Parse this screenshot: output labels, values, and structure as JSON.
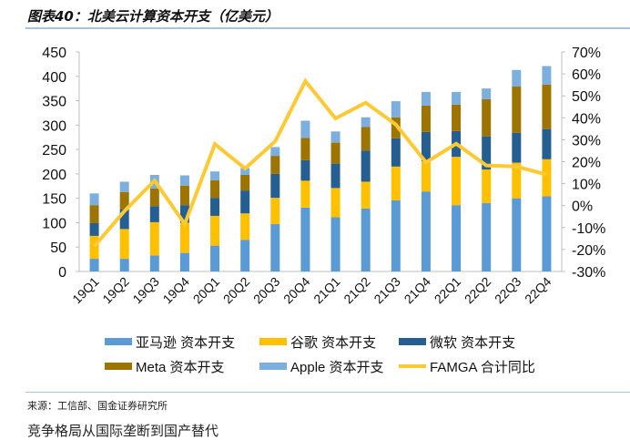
{
  "title": "图表40：北美云计算资本开支（亿美元）",
  "source": "来源：工信部、国金证券研究所",
  "cut_text": "竞争格局从国际垄断到国产替代",
  "chart_data": {
    "type": "bar",
    "stacked": true,
    "categories": [
      "19Q1",
      "19Q2",
      "19Q3",
      "19Q4",
      "20Q1",
      "20Q2",
      "20Q3",
      "20Q4",
      "21Q1",
      "21Q2",
      "21Q3",
      "21Q4",
      "22Q1",
      "22Q2",
      "22Q3",
      "22Q4"
    ],
    "ylim": [
      0,
      450
    ],
    "yticks": [
      0,
      50,
      100,
      150,
      200,
      250,
      300,
      350,
      400,
      450
    ],
    "y2lim": [
      -30,
      70
    ],
    "y2ticks": [
      "-30%",
      "-20%",
      "-10%",
      "0%",
      "10%",
      "20%",
      "30%",
      "40%",
      "50%",
      "60%",
      "70%"
    ],
    "legend_position": "bottom",
    "series": [
      {
        "name": "亚马逊 资本开支",
        "color": "#5b9bd5",
        "values": [
          26,
          26,
          33,
          38,
          53,
          65,
          97,
          131,
          111,
          129,
          146,
          164,
          136,
          140,
          150,
          154
        ]
      },
      {
        "name": "谷歌 资本开支",
        "color": "#ffc000",
        "values": [
          47,
          61,
          68,
          62,
          61,
          54,
          54,
          55,
          60,
          55,
          69,
          62,
          99,
          69,
          73,
          76
        ]
      },
      {
        "name": "微软 资本开支",
        "color": "#255e91",
        "values": [
          26,
          40,
          33,
          36,
          37,
          47,
          49,
          42,
          50,
          64,
          58,
          60,
          53,
          68,
          61,
          62
        ]
      },
      {
        "name": "Meta 资本开支",
        "color": "#9e7400",
        "values": [
          37,
          36,
          36,
          40,
          36,
          32,
          37,
          46,
          43,
          48,
          43,
          54,
          54,
          76,
          95,
          91
        ]
      },
      {
        "name": "Apple 资本开支",
        "color": "#7cafdd",
        "values": [
          24,
          21,
          28,
          21,
          18,
          14,
          18,
          35,
          23,
          20,
          33,
          28,
          26,
          22,
          34,
          38
        ]
      }
    ],
    "line": {
      "name": "FAMGA 合计同比",
      "color": "#ffc934",
      "axis": "right",
      "values": [
        -18.5,
        -2.5,
        11.4,
        -8.4,
        28.0,
        16.9,
        29.3,
        56.7,
        39.7,
        46.9,
        36.9,
        19.7,
        28.2,
        18.3,
        17.8,
        14.1
      ]
    }
  }
}
